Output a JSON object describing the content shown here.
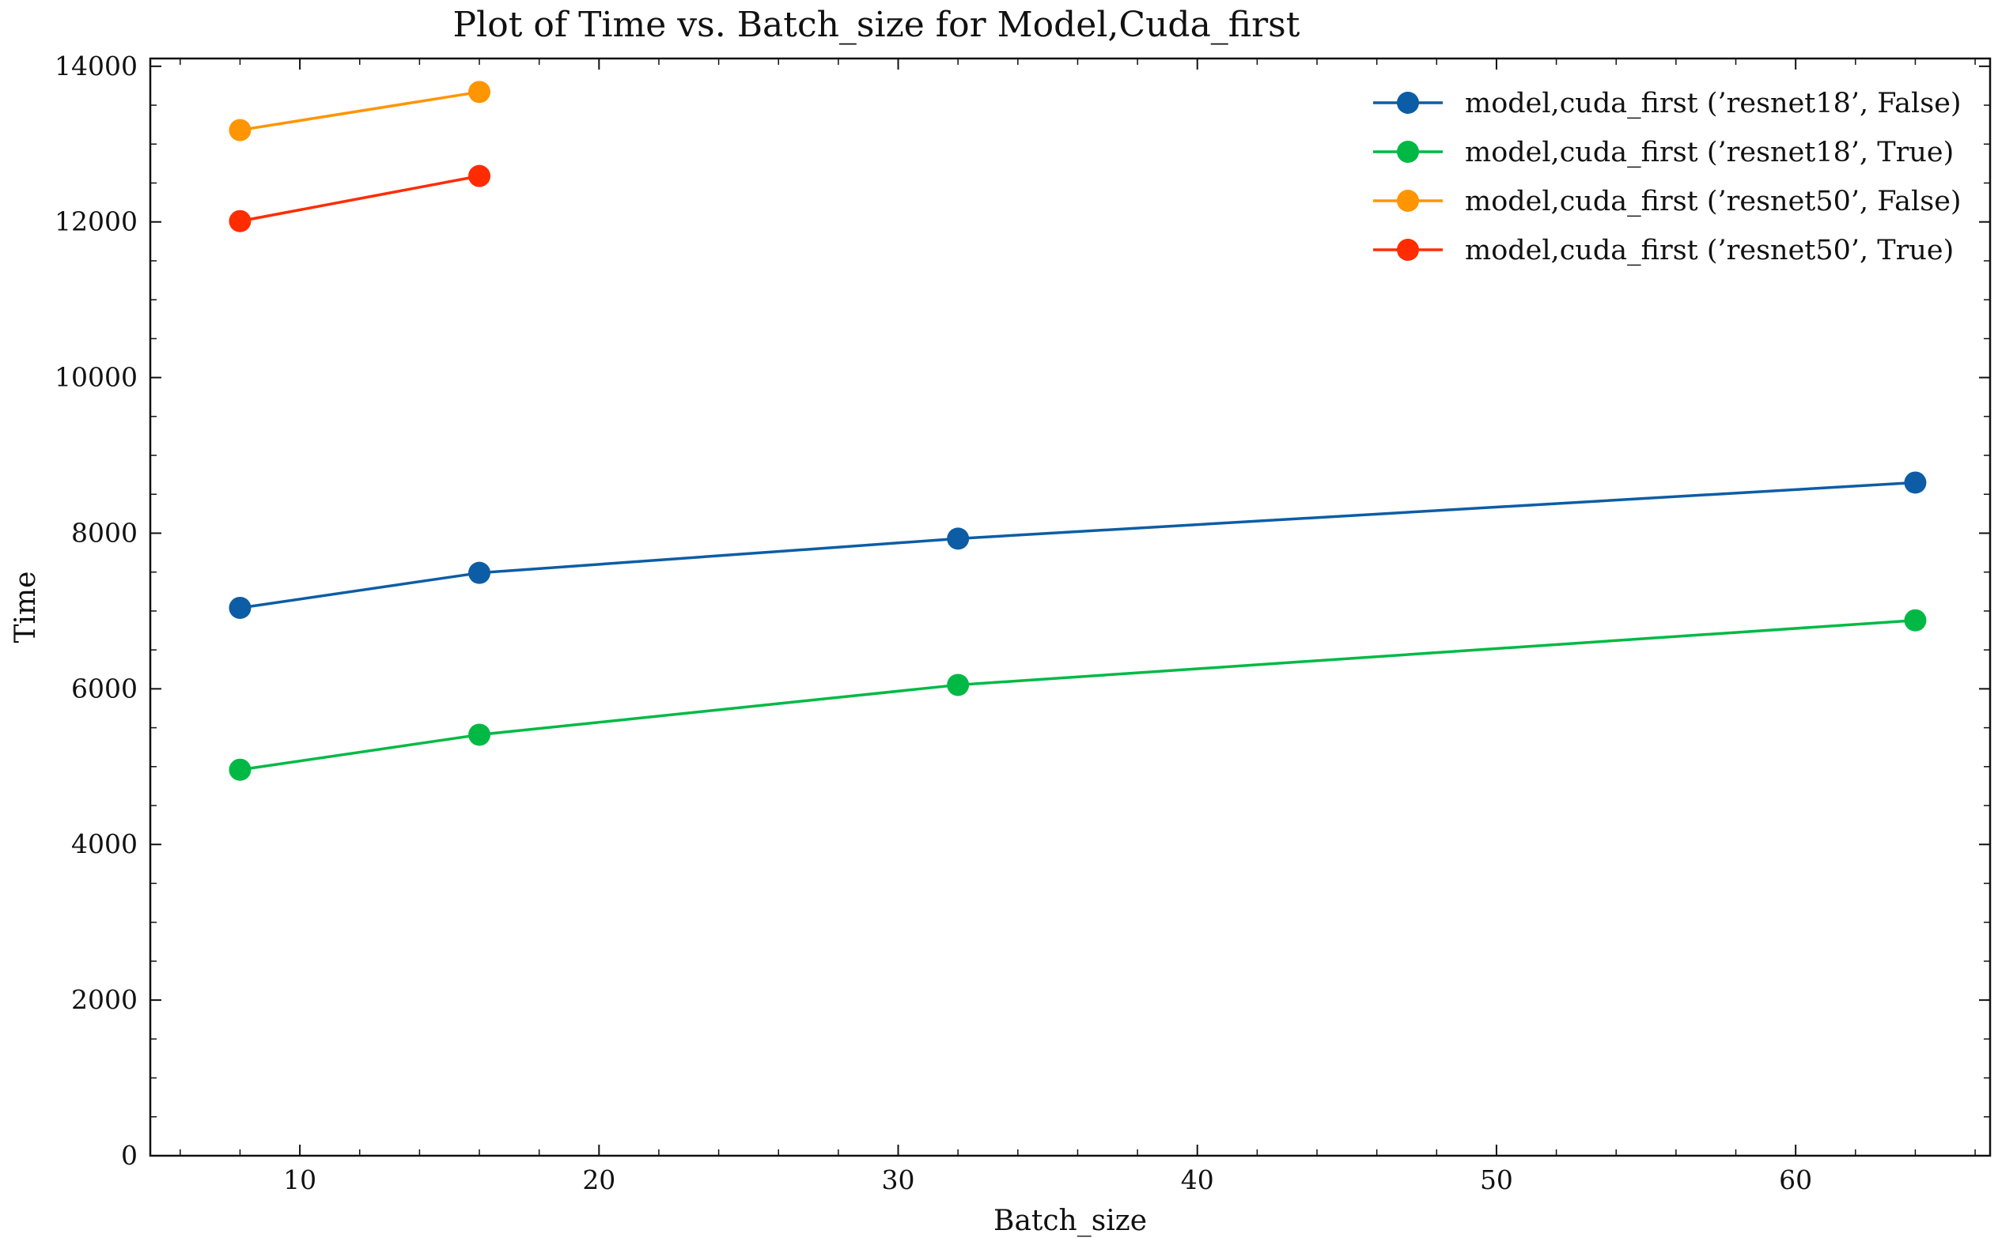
{
  "chart_data": {
    "type": "line",
    "title": "Plot of Time vs. Batch_size for Model,Cuda_first",
    "xlabel": "Batch_size",
    "ylabel": "Time",
    "xlim": [
      5,
      66.5
    ],
    "ylim": [
      0,
      14100
    ],
    "xticks": [
      10,
      20,
      30,
      40,
      50,
      60
    ],
    "yticks": [
      0,
      2000,
      4000,
      6000,
      8000,
      10000,
      12000,
      14000
    ],
    "grid": false,
    "legend_position": "top-right",
    "series": [
      {
        "name": "model,cuda_first (’resnet18’, False)",
        "color": "#0C5DA5",
        "x": [
          8,
          16,
          32,
          64
        ],
        "y": [
          7040,
          7490,
          7930,
          8650
        ]
      },
      {
        "name": "model,cuda_first (’resnet18’, True)",
        "color": "#00B945",
        "x": [
          8,
          16,
          32,
          64
        ],
        "y": [
          4960,
          5410,
          6050,
          6880
        ]
      },
      {
        "name": "model,cuda_first (’resnet50’, False)",
        "color": "#FF9500",
        "x": [
          8,
          16
        ],
        "y": [
          13180,
          13670
        ]
      },
      {
        "name": "model,cuda_first (’resnet50’, True)",
        "color": "#FF2C00",
        "x": [
          8,
          16
        ],
        "y": [
          12010,
          12590
        ]
      }
    ]
  }
}
